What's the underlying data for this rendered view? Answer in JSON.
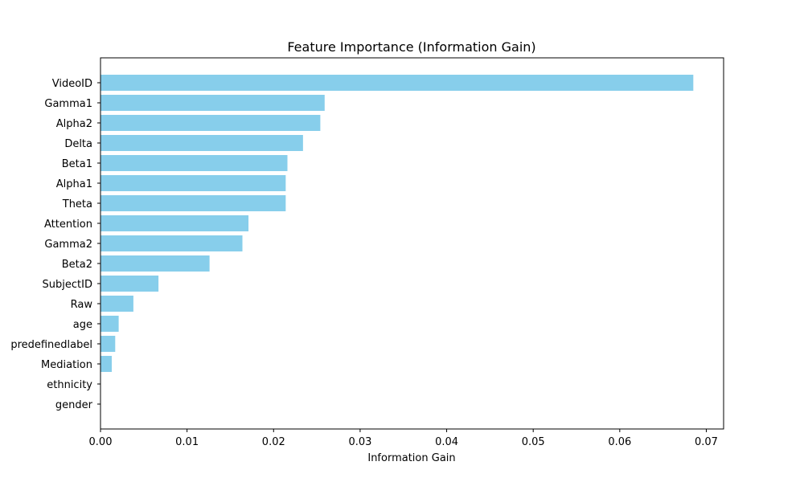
{
  "chart_data": {
    "type": "bar",
    "orientation": "horizontal",
    "title": "Feature Importance (Information Gain)",
    "xlabel": "Information Gain",
    "ylabel": "",
    "xlim": [
      0.0,
      0.072
    ],
    "xticks": [
      "0.00",
      "0.01",
      "0.02",
      "0.03",
      "0.04",
      "0.05",
      "0.06",
      "0.07"
    ],
    "categories": [
      "VideoID",
      "Gamma1",
      "Alpha2",
      "Delta",
      "Beta1",
      "Alpha1",
      "Theta",
      "Attention",
      "Gamma2",
      "Beta2",
      "SubjectID",
      "Raw",
      "age",
      "predefinedlabel",
      "Mediation",
      "ethnicity",
      "gender"
    ],
    "values": [
      0.0685,
      0.0259,
      0.0254,
      0.0234,
      0.0216,
      0.0214,
      0.0214,
      0.0171,
      0.0164,
      0.0126,
      0.0067,
      0.0038,
      0.0021,
      0.0017,
      0.0013,
      0.0,
      0.0
    ],
    "bar_color": "#87CEEB",
    "grid": false,
    "legend": false
  }
}
